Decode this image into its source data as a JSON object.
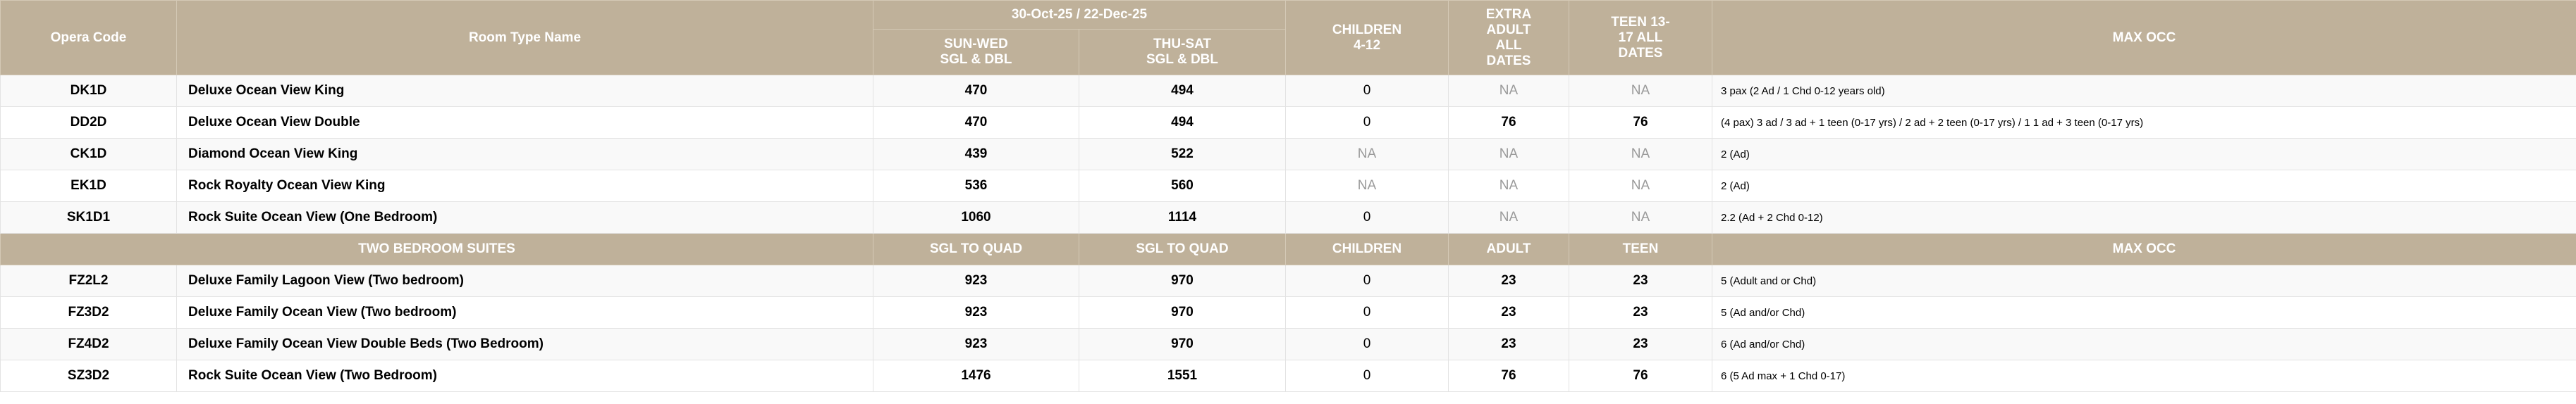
{
  "header": {
    "opera_code": "Opera Code",
    "room_type_name": "Room Type Name",
    "date_range": "30-Oct-25 / 22-Dec-25",
    "sun_wed": "SUN-WED\nSGL & DBL",
    "thu_sat": "THU-SAT\nSGL & DBL",
    "children": "CHILDREN\n4-12",
    "extra_adult": "EXTRA\nADULT\nALL\nDATES",
    "teen": "TEEN 13-\n17 ALL\nDATES",
    "max_occ": "MAX OCC"
  },
  "rows1": [
    {
      "code": "DK1D",
      "name": "Deluxe Ocean View King",
      "sunwed": "470",
      "thusat": "494",
      "children": "0",
      "adult": "NA",
      "teen": "NA",
      "occ": "3 pax (2 Ad / 1 Chd 0-12 years old)"
    },
    {
      "code": "DD2D",
      "name": "Deluxe Ocean View Double",
      "sunwed": "470",
      "thusat": "494",
      "children": "0",
      "adult": "76",
      "teen": "76",
      "occ": "(4 pax) 3 ad / 3 ad + 1 teen (0-17 yrs) / 2 ad + 2 teen (0-17 yrs) / 1 1 ad + 3 teen (0-17 yrs)"
    },
    {
      "code": "CK1D",
      "name": "Diamond Ocean View King",
      "sunwed": "439",
      "thusat": "522",
      "children": "NA",
      "adult": "NA",
      "teen": "NA",
      "occ": "2 (Ad)"
    },
    {
      "code": "EK1D",
      "name": "Rock Royalty Ocean View King",
      "sunwed": "536",
      "thusat": "560",
      "children": "NA",
      "adult": "NA",
      "teen": "NA",
      "occ": "2 (Ad)"
    },
    {
      "code": "SK1D1",
      "name": "Rock Suite Ocean View (One Bedroom)",
      "sunwed": "1060",
      "thusat": "1114",
      "children": "0",
      "adult": "NA",
      "teen": "NA",
      "occ": "2.2 (Ad + 2 Chd 0-12)"
    }
  ],
  "section": {
    "title": "TWO BEDROOM SUITES",
    "col1": "SGL TO QUAD",
    "col2": "SGL TO QUAD",
    "children": "CHILDREN",
    "adult": "ADULT",
    "teen": "TEEN",
    "max_occ": "MAX OCC"
  },
  "rows2": [
    {
      "code": "FZ2L2",
      "name": "Deluxe Family Lagoon View (Two bedroom)",
      "sunwed": "923",
      "thusat": "970",
      "children": "0",
      "adult": "23",
      "teen": "23",
      "occ": "5 (Adult and or Chd)"
    },
    {
      "code": "FZ3D2",
      "name": "Deluxe Family Ocean View (Two bedroom)",
      "sunwed": "923",
      "thusat": "970",
      "children": "0",
      "adult": "23",
      "teen": "23",
      "occ": "5 (Ad and/or Chd)"
    },
    {
      "code": "FZ4D2",
      "name": "Deluxe Family Ocean View Double Beds (Two Bedroom)",
      "sunwed": "923",
      "thusat": "970",
      "children": "0",
      "adult": "23",
      "teen": "23",
      "occ": "6 (Ad and/or Chd)"
    },
    {
      "code": "SZ3D2",
      "name": "Rock Suite Ocean View (Two Bedroom)",
      "sunwed": "1476",
      "thusat": "1551",
      "children": "0",
      "adult": "76",
      "teen": "76",
      "occ": "6 (5 Ad max + 1 Chd 0-17)"
    }
  ]
}
